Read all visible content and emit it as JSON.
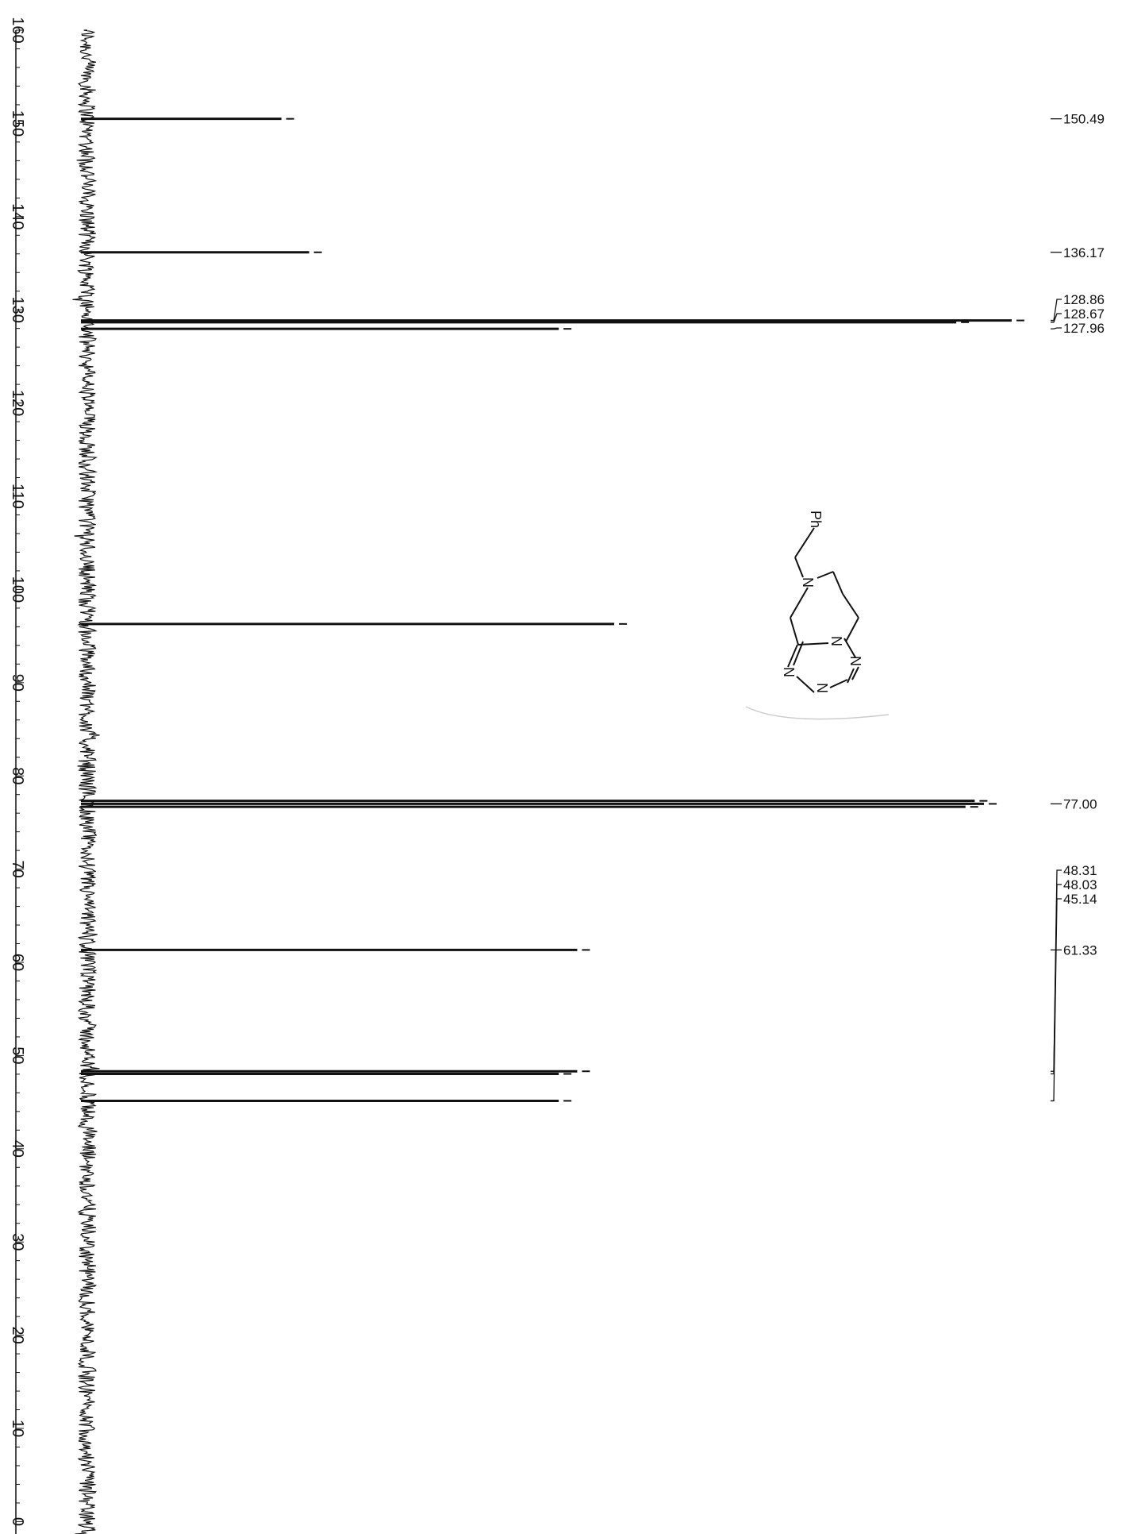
{
  "chart_data": {
    "type": "line",
    "orientation": "vertical-ppm-axis",
    "title": "",
    "xlabel": "",
    "ylabel": "",
    "ppm_axis_range": [
      160,
      -2
    ],
    "axis_ticks": [
      160,
      150,
      140,
      130,
      120,
      110,
      100,
      90,
      80,
      70,
      60,
      50,
      40,
      30,
      20,
      10,
      0
    ],
    "axis_tick_labels": [
      "160",
      "150",
      "140",
      "130",
      "120",
      "110",
      "100",
      "90",
      "80",
      "70",
      "60",
      "50",
      "40",
      "30",
      "20",
      "10",
      "0"
    ],
    "peaks": [
      {
        "ppm": 150.49,
        "intensity": 0.21
      },
      {
        "ppm": 136.17,
        "intensity": 0.24
      },
      {
        "ppm": 128.86,
        "intensity": 1.0
      },
      {
        "ppm": 128.67,
        "intensity": 0.94
      },
      {
        "ppm": 127.96,
        "intensity": 0.51
      },
      {
        "ppm": 96.3,
        "intensity": 0.57
      },
      {
        "ppm": 77.32,
        "intensity": 0.96
      },
      {
        "ppm": 77.0,
        "intensity": 0.97
      },
      {
        "ppm": 76.68,
        "intensity": 0.95
      },
      {
        "ppm": 61.33,
        "intensity": 0.53
      },
      {
        "ppm": 48.31,
        "intensity": 0.53
      },
      {
        "ppm": 48.03,
        "intensity": 0.51
      },
      {
        "ppm": 45.14,
        "intensity": 0.51
      }
    ],
    "peak_labels": [
      "150.49",
      "136.17",
      "128.86",
      "128.67",
      "127.96",
      "77.00",
      "61.33",
      "48.31",
      "48.03",
      "45.14"
    ],
    "grid": false
  },
  "structure": {
    "atoms": {
      "ph": "Ph",
      "n_amine": "N",
      "n1": "N",
      "n2": "N",
      "n3": "N",
      "n4": "N"
    }
  }
}
